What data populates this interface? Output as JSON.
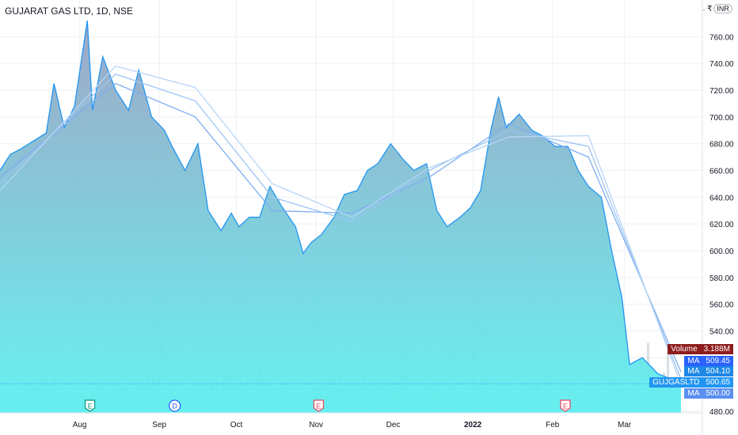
{
  "header": {
    "title": "GUJARAT GAS LTD, 1D, NSE",
    "currency_prefix": "₹",
    "currency_badge": "INR"
  },
  "price_axis": {
    "ticks": [
      "760.00",
      "740.00",
      "720.00",
      "700.00",
      "680.00",
      "660.00",
      "640.00",
      "620.00",
      "600.00",
      "580.00",
      "560.00",
      "540.00",
      "480.00"
    ]
  },
  "time_axis": {
    "labels": [
      "Aug",
      "Sep",
      "Oct",
      "Nov",
      "Dec",
      "2022",
      "Feb",
      "Mar"
    ]
  },
  "event_markers": [
    {
      "letter": "E",
      "type": "earnings"
    },
    {
      "letter": "D",
      "type": "dividend"
    },
    {
      "letter": "E",
      "type": "earnings"
    },
    {
      "letter": "E",
      "type": "earnings"
    }
  ],
  "legend_tags": [
    {
      "label": "Volume",
      "value": "3.188M",
      "color": "#8e1d1d"
    },
    {
      "label": "MA",
      "value": "509.45",
      "color": "#2962ff"
    },
    {
      "label": "MA",
      "value": "504.10",
      "color": "#1e88e5"
    },
    {
      "label": "GUJGASLTD",
      "value": "500.65",
      "color": "#2196f3"
    },
    {
      "label": "MA",
      "value": "500.00",
      "color": "#5b8ff0"
    }
  ],
  "colors": {
    "line": "#2196f3",
    "area_top": "#9aa3c3",
    "area_bottom": "#5ff0f0",
    "volume": "#b8c0cc",
    "ma1": "#7eaef0",
    "ma2": "#9cc4f2",
    "ma3": "#b6d5f6"
  },
  "chart_data": {
    "type": "area",
    "title": "GUJARAT GAS LTD, 1D, NSE",
    "ylim": [
      470,
      780
    ],
    "x_range": [
      "2021-07-01",
      "2022-03-23"
    ],
    "y_axis_position": "right",
    "grid": true,
    "series": [
      {
        "name": "GUJGASLTD",
        "points": [
          [
            "2021-07-01",
            660
          ],
          [
            "2021-07-05",
            672
          ],
          [
            "2021-07-09",
            676
          ],
          [
            "2021-07-14",
            682
          ],
          [
            "2021-07-19",
            688
          ],
          [
            "2021-07-22",
            725
          ],
          [
            "2021-07-26",
            692
          ],
          [
            "2021-07-30",
            708
          ],
          [
            "2021-08-04",
            772
          ],
          [
            "2021-08-06",
            705
          ],
          [
            "2021-08-10",
            745
          ],
          [
            "2021-08-15",
            720
          ],
          [
            "2021-08-20",
            705
          ],
          [
            "2021-08-24",
            735
          ],
          [
            "2021-08-29",
            700
          ],
          [
            "2021-09-03",
            690
          ],
          [
            "2021-09-06",
            678
          ],
          [
            "2021-09-11",
            660
          ],
          [
            "2021-09-16",
            680
          ],
          [
            "2021-09-20",
            630
          ],
          [
            "2021-09-25",
            615
          ],
          [
            "2021-09-29",
            628
          ],
          [
            "2021-10-02",
            618
          ],
          [
            "2021-10-06",
            625
          ],
          [
            "2021-10-10",
            625
          ],
          [
            "2021-10-14",
            648
          ],
          [
            "2021-10-19",
            632
          ],
          [
            "2021-10-24",
            618
          ],
          [
            "2021-10-27",
            598
          ],
          [
            "2021-10-30",
            606
          ],
          [
            "2021-11-03",
            612
          ],
          [
            "2021-11-08",
            625
          ],
          [
            "2021-11-12",
            642
          ],
          [
            "2021-11-17",
            645
          ],
          [
            "2021-11-21",
            660
          ],
          [
            "2021-11-25",
            665
          ],
          [
            "2021-11-30",
            680
          ],
          [
            "2021-12-05",
            668
          ],
          [
            "2021-12-09",
            660
          ],
          [
            "2021-12-14",
            665
          ],
          [
            "2021-12-18",
            630
          ],
          [
            "2021-12-22",
            618
          ],
          [
            "2021-12-27",
            625
          ],
          [
            "2021-12-31",
            632
          ],
          [
            "2022-01-04",
            645
          ],
          [
            "2022-01-08",
            690
          ],
          [
            "2022-01-11",
            715
          ],
          [
            "2022-01-14",
            692
          ],
          [
            "2022-01-19",
            702
          ],
          [
            "2022-01-24",
            690
          ],
          [
            "2022-01-28",
            686
          ],
          [
            "2022-02-02",
            678
          ],
          [
            "2022-02-07",
            678
          ],
          [
            "2022-02-11",
            660
          ],
          [
            "2022-02-15",
            648
          ],
          [
            "2022-02-20",
            640
          ],
          [
            "2022-02-24",
            600
          ],
          [
            "2022-02-28",
            565
          ],
          [
            "2022-03-03",
            515
          ],
          [
            "2022-03-08",
            520
          ],
          [
            "2022-03-14",
            508
          ],
          [
            "2022-03-18",
            505
          ],
          [
            "2022-03-23",
            500.65
          ]
        ]
      },
      {
        "name": "MA",
        "values_note": "moving average",
        "points": [
          [
            "2021-07-01",
            655
          ],
          [
            "2021-08-15",
            725
          ],
          [
            "2021-09-15",
            700
          ],
          [
            "2021-10-15",
            630
          ],
          [
            "2021-11-15",
            628
          ],
          [
            "2021-12-15",
            655
          ],
          [
            "2022-01-15",
            695
          ],
          [
            "2022-02-15",
            670
          ],
          [
            "2022-03-23",
            509.45
          ]
        ]
      },
      {
        "name": "MA",
        "points": [
          [
            "2021-07-01",
            650
          ],
          [
            "2021-08-15",
            732
          ],
          [
            "2021-09-15",
            712
          ],
          [
            "2021-10-15",
            640
          ],
          [
            "2021-11-15",
            622
          ],
          [
            "2021-12-15",
            660
          ],
          [
            "2022-01-15",
            690
          ],
          [
            "2022-02-15",
            678
          ],
          [
            "2022-03-23",
            504.1
          ]
        ]
      },
      {
        "name": "MA",
        "points": [
          [
            "2021-07-01",
            645
          ],
          [
            "2021-08-15",
            738
          ],
          [
            "2021-09-15",
            722
          ],
          [
            "2021-10-15",
            650
          ],
          [
            "2021-11-15",
            625
          ],
          [
            "2021-12-15",
            662
          ],
          [
            "2022-01-15",
            685
          ],
          [
            "2022-02-15",
            686
          ],
          [
            "2022-03-23",
            500.0
          ]
        ]
      }
    ],
    "volume_last": "3.188M"
  }
}
